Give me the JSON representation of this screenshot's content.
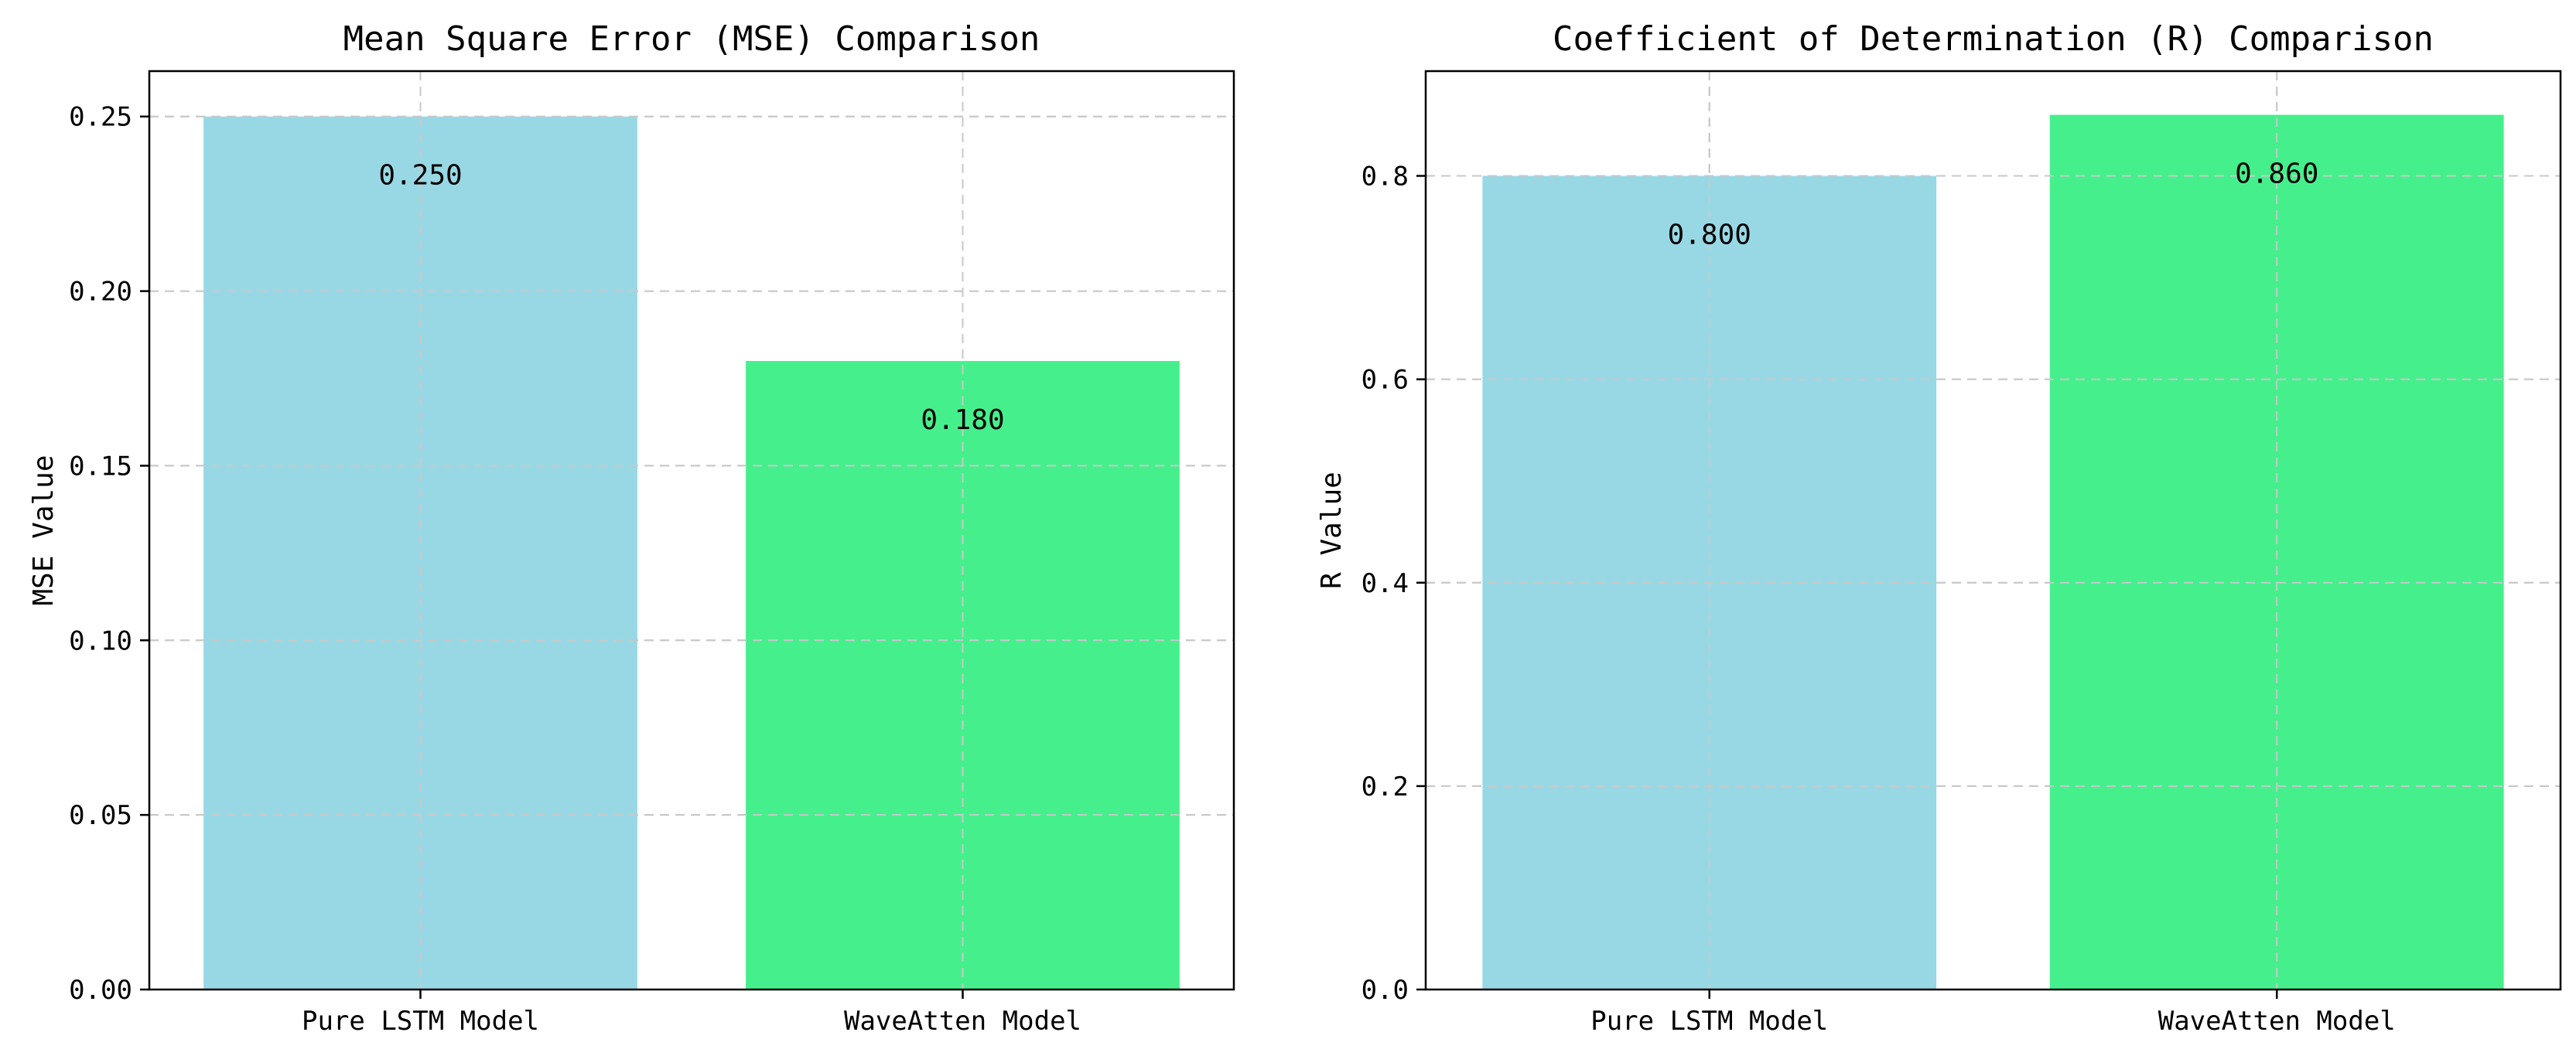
{
  "chart_data": [
    {
      "type": "bar",
      "title": "Mean Square Error (MSE) Comparison",
      "xlabel": "",
      "ylabel": "MSE Value",
      "categories": [
        "Pure LSTM Model",
        "WaveAtten Model"
      ],
      "values": [
        0.25,
        0.18
      ],
      "value_labels": [
        "0.250",
        "0.180"
      ],
      "colors": [
        "#98d8e5",
        "#45f08c"
      ],
      "ylim": [
        0,
        0.263
      ],
      "yticks": [
        0.0,
        0.05,
        0.1,
        0.15,
        0.2,
        0.25
      ],
      "ytick_labels": [
        "0.00",
        "0.05",
        "0.10",
        "0.15",
        "0.20",
        "0.25"
      ],
      "grid": true,
      "legend": "none"
    },
    {
      "type": "bar",
      "title": "Coefficient of Determination (R) Comparison",
      "xlabel": "",
      "ylabel": "R Value",
      "categories": [
        "Pure LSTM Model",
        "WaveAtten Model"
      ],
      "values": [
        0.8,
        0.86
      ],
      "value_labels": [
        "0.800",
        "0.860"
      ],
      "colors": [
        "#98d8e5",
        "#45f08c"
      ],
      "ylim": [
        0,
        0.903
      ],
      "yticks": [
        0.0,
        0.2,
        0.4,
        0.6,
        0.8
      ],
      "ytick_labels": [
        "0.0",
        "0.2",
        "0.4",
        "0.6",
        "0.8"
      ],
      "grid": true,
      "legend": "none"
    }
  ]
}
